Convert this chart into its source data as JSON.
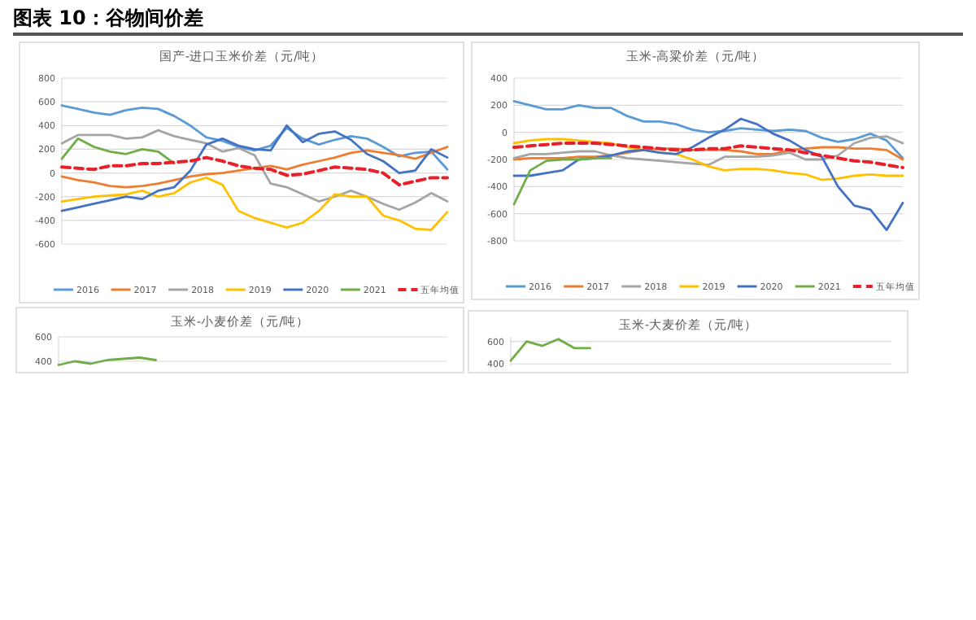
{
  "chart_data": [
    {
      "type": "line",
      "title": "国产-进口玉米价差（元/吨）",
      "annotations": [
        "图表 10：谷物间价差"
      ],
      "categories": [
        null,
        null,
        null,
        null,
        null,
        null,
        null,
        null,
        null,
        null,
        null,
        null,
        null,
        null,
        null,
        null,
        null,
        null,
        null,
        null,
        null,
        null,
        null,
        null,
        null
      ],
      "ylim": [
        -600,
        800
      ],
      "yticks": [
        -600,
        -400,
        -200,
        0,
        200,
        400,
        600,
        800
      ],
      "grid": "y",
      "legend": "bottom",
      "tick_labels": "y",
      "series": [
        {
          "name": "2016",
          "color": "#5b9bd5",
          "values": [
            570,
            540,
            510,
            490,
            530,
            550,
            540,
            480,
            400,
            300,
            270,
            220,
            190,
            230,
            380,
            290,
            240,
            280,
            310,
            290,
            220,
            140,
            170,
            180,
            30
          ]
        },
        {
          "name": "2017",
          "color": "#ed7d31",
          "values": [
            -30,
            -60,
            -80,
            -110,
            -120,
            -110,
            -90,
            -60,
            -30,
            -10,
            0,
            20,
            40,
            60,
            30,
            70,
            100,
            130,
            170,
            190,
            170,
            150,
            120,
            170,
            220
          ]
        },
        {
          "name": "2018",
          "color": "#a5a5a5",
          "values": [
            250,
            320,
            320,
            320,
            290,
            300,
            360,
            310,
            280,
            250,
            180,
            210,
            150,
            -90,
            -120,
            -180,
            -240,
            -200,
            -150,
            -200,
            -260,
            -310,
            -250,
            -170,
            -240
          ]
        },
        {
          "name": "2019",
          "color": "#ffc000",
          "values": [
            -240,
            -220,
            -200,
            -190,
            -180,
            -150,
            -200,
            -170,
            -80,
            -40,
            -100,
            -320,
            -380,
            -420,
            -460,
            -420,
            -320,
            -180,
            -200,
            -200,
            -360,
            -400,
            -470,
            -480,
            -330
          ]
        },
        {
          "name": "2020",
          "color": "#4472c4",
          "values": [
            -320,
            -290,
            -260,
            -230,
            -200,
            -220,
            -150,
            -120,
            20,
            240,
            290,
            230,
            200,
            190,
            400,
            260,
            330,
            350,
            280,
            160,
            100,
            0,
            20,
            200,
            130
          ]
        },
        {
          "name": "2021",
          "color": "#70ad47",
          "values": [
            120,
            290,
            220,
            180,
            160,
            200,
            180,
            80,
            null,
            null,
            null,
            null,
            null,
            null,
            null,
            null,
            null,
            null,
            null,
            null,
            null,
            null,
            null,
            null,
            null
          ]
        },
        {
          "name": "五年均值",
          "color": "#e8202a",
          "line_style": "dashed",
          "values": [
            50,
            40,
            30,
            60,
            60,
            80,
            80,
            90,
            100,
            130,
            100,
            60,
            40,
            30,
            -20,
            -10,
            20,
            50,
            40,
            30,
            0,
            -100,
            -70,
            -40,
            -40
          ]
        }
      ]
    },
    {
      "type": "line",
      "title": "玉米-高粱价差（元/吨）",
      "categories": [
        null,
        null,
        null,
        null,
        null,
        null,
        null,
        null,
        null,
        null,
        null,
        null,
        null,
        null,
        null,
        null,
        null,
        null,
        null,
        null,
        null,
        null,
        null,
        null,
        null
      ],
      "ylim": [
        -800,
        400
      ],
      "yticks": [
        -800,
        -600,
        -400,
        -200,
        0,
        200,
        400
      ],
      "grid": "y",
      "legend": "bottom",
      "tick_labels": "y",
      "series": [
        {
          "name": "2016",
          "color": "#5b9bd5",
          "values": [
            230,
            200,
            170,
            170,
            200,
            180,
            180,
            120,
            80,
            80,
            60,
            20,
            0,
            10,
            30,
            20,
            10,
            20,
            10,
            -40,
            -70,
            -50,
            -10,
            -60,
            -190
          ]
        },
        {
          "name": "2017",
          "color": "#ed7d31",
          "values": [
            -200,
            -190,
            -190,
            -190,
            -180,
            -180,
            -170,
            -150,
            -130,
            -120,
            -120,
            -130,
            -130,
            -130,
            -140,
            -160,
            -160,
            -130,
            -120,
            -110,
            -110,
            -120,
            -120,
            -130,
            -200
          ]
        },
        {
          "name": "2018",
          "color": "#a5a5a5",
          "values": [
            -190,
            -160,
            -160,
            -150,
            -140,
            -140,
            -170,
            -190,
            -200,
            -210,
            -220,
            -230,
            -240,
            -180,
            -180,
            -180,
            -170,
            -150,
            -200,
            -200,
            -170,
            -80,
            -40,
            -30,
            -80
          ]
        },
        {
          "name": "2019",
          "color": "#ffc000",
          "values": [
            -80,
            -60,
            -50,
            -50,
            -60,
            -70,
            -80,
            -110,
            -130,
            -150,
            -160,
            -200,
            -250,
            -280,
            -270,
            -270,
            -280,
            -300,
            -310,
            -350,
            -340,
            -320,
            -310,
            -320,
            -320
          ]
        },
        {
          "name": "2020",
          "color": "#4472c4",
          "values": [
            -320,
            -320,
            -300,
            -280,
            -200,
            -190,
            -170,
            -140,
            -130,
            -150,
            -160,
            -110,
            -40,
            20,
            100,
            60,
            -10,
            -60,
            -130,
            -180,
            -400,
            -540,
            -570,
            -720,
            -520
          ]
        },
        {
          "name": "2021",
          "color": "#70ad47",
          "values": [
            -530,
            -280,
            -210,
            -200,
            -200,
            -190,
            -190,
            null,
            null,
            null,
            null,
            null,
            null,
            null,
            null,
            null,
            null,
            null,
            null,
            null,
            null,
            null,
            null,
            null,
            null
          ]
        },
        {
          "name": "五年均值",
          "color": "#e8202a",
          "line_style": "dashed",
          "values": [
            -110,
            -100,
            -90,
            -80,
            -80,
            -80,
            -90,
            -100,
            -110,
            -120,
            -130,
            -130,
            -120,
            -120,
            -100,
            -110,
            -120,
            -130,
            -150,
            -170,
            -190,
            -210,
            -220,
            -240,
            -260
          ]
        }
      ]
    },
    {
      "type": "line",
      "title": "玉米-小麦价差（元/吨）",
      "categories": [
        null,
        null,
        null,
        null,
        null,
        null,
        null,
        null,
        null,
        null,
        null,
        null,
        null,
        null,
        null,
        null,
        null,
        null,
        null,
        null,
        null,
        null,
        null,
        null,
        null
      ],
      "ylim": [
        360,
        600
      ],
      "yticks": [
        400,
        600
      ],
      "grid": "y",
      "tick_labels": "y",
      "series": [
        {
          "color": "#70ad47",
          "values": [
            370,
            400,
            380,
            410,
            420,
            430,
            410,
            null,
            null,
            null,
            null,
            null,
            null,
            null,
            null,
            null,
            null,
            null,
            null,
            null,
            null,
            null,
            null,
            null,
            null
          ]
        }
      ]
    },
    {
      "type": "line",
      "title": "玉米-大麦价差（元/吨）",
      "categories": [
        null,
        null,
        null,
        null,
        null,
        null,
        null,
        null,
        null,
        null,
        null,
        null,
        null,
        null,
        null,
        null,
        null,
        null,
        null,
        null,
        null,
        null,
        null,
        null,
        null
      ],
      "ylim": [
        380,
        640
      ],
      "yticks": [
        400,
        600
      ],
      "grid": "y",
      "tick_labels": "y",
      "series": [
        {
          "color": "#70ad47",
          "values": [
            430,
            600,
            560,
            620,
            540,
            540,
            null,
            null,
            null,
            null,
            null,
            null,
            null,
            null,
            null,
            null,
            null,
            null,
            null,
            null,
            null,
            null,
            null,
            null,
            null
          ]
        }
      ]
    }
  ]
}
